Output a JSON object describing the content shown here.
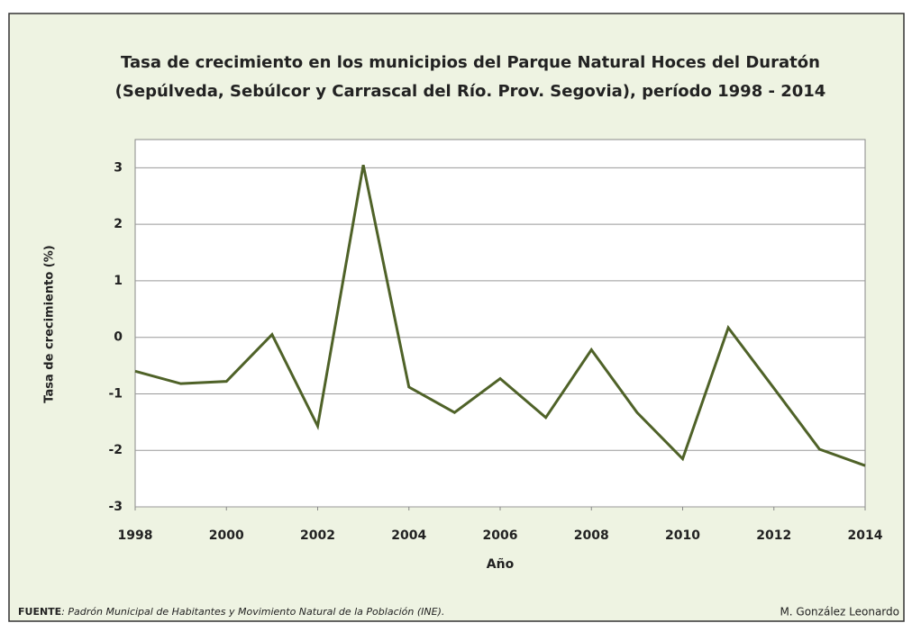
{
  "chart_data": {
    "type": "line",
    "title": [
      "Tasa de crecimiento en los municipios del Parque Natural Hoces del Duratón",
      "(Sepúlveda, Sebúlcor y Carrascal del Río. Prov. Segovia), período 1998 - 2014"
    ],
    "x": [
      1998,
      1999,
      2000,
      2001,
      2002,
      2003,
      2004,
      2005,
      2006,
      2007,
      2008,
      2009,
      2010,
      2011,
      2012,
      2013,
      2014
    ],
    "values": [
      -0.6,
      -0.82,
      -0.78,
      0.05,
      -1.57,
      3.05,
      -0.88,
      -1.33,
      -0.73,
      -1.42,
      -0.22,
      -1.33,
      -2.15,
      0.17,
      -0.9,
      -1.98,
      -2.27
    ],
    "color": "#4f6228",
    "xlim": [
      1998,
      2014
    ],
    "xticks": [
      1998,
      2000,
      2002,
      2004,
      2006,
      2008,
      2010,
      2012,
      2014
    ],
    "ylim": [
      -3,
      3.5
    ],
    "yticks": [
      -3,
      -2,
      -1,
      0,
      1,
      2,
      3
    ],
    "grid": true,
    "xlabel": "Año",
    "ylabel": "Tasa  de  crecimiento  (%)",
    "source": {
      "label": "FUENTE",
      "text": ": Padrón Municipal de Habitantes y Movimiento Natural de la Población (INE)."
    },
    "author": "M. González Leonardo"
  }
}
